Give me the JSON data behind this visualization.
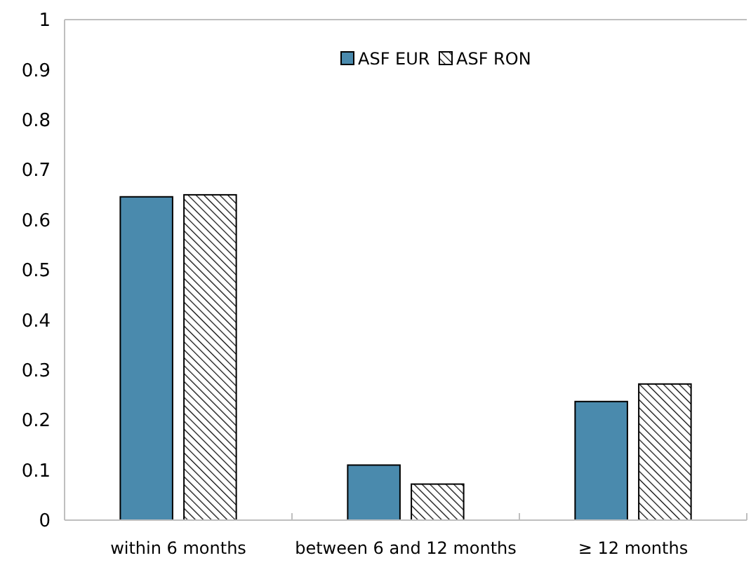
{
  "chart_data": {
    "type": "bar",
    "categories": [
      "within 6 months",
      "between 6 and 12 months",
      "≥ 12 months"
    ],
    "series": [
      {
        "name": "ASF EUR",
        "color": "#4a8aad",
        "values": [
          0.646,
          0.11,
          0.237
        ]
      },
      {
        "name": "ASF RON",
        "color": "#000000",
        "values": [
          0.65,
          0.072,
          0.272
        ]
      }
    ],
    "ylim": [
      0,
      1
    ],
    "yticks": [
      0,
      0.1,
      0.2,
      0.3,
      0.4,
      0.5,
      0.6,
      0.7,
      0.8,
      0.9,
      1
    ],
    "grid": false,
    "legend": "top"
  }
}
